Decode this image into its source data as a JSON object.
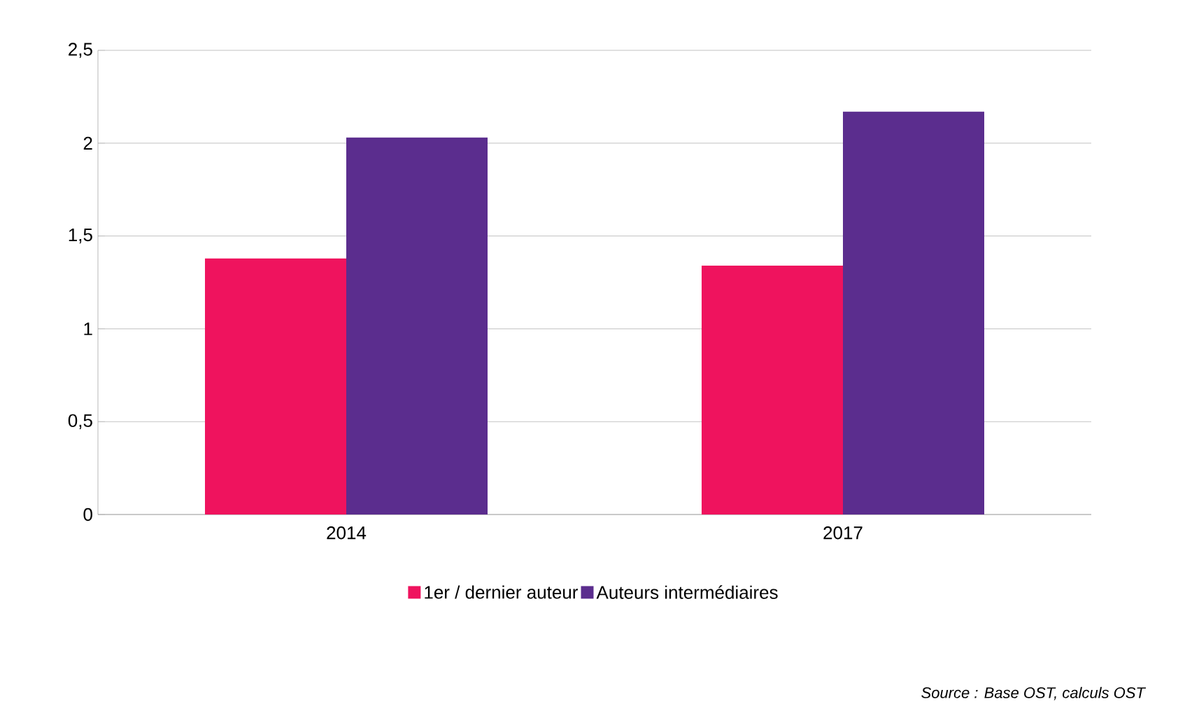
{
  "chart_data": {
    "type": "bar",
    "categories": [
      "2014",
      "2017"
    ],
    "series": [
      {
        "name": "1er / dernier auteur",
        "color": "#ef135e",
        "values": [
          1.38,
          1.34
        ]
      },
      {
        "name": "Auteurs intermédiaires",
        "color": "#5b2d8e",
        "values": [
          2.03,
          2.17
        ]
      }
    ],
    "ylim": [
      0,
      2.5
    ],
    "yticks": [
      0,
      {
        "value": 0.5,
        "label": "0,5"
      },
      1,
      {
        "value": 1.5,
        "label": "1,5"
      },
      2,
      {
        "value": 2.5,
        "label": "2,5"
      }
    ],
    "grid": "y",
    "legend": "bottom",
    "annotations": [
      "Source : Base OST, calculs OST"
    ]
  }
}
